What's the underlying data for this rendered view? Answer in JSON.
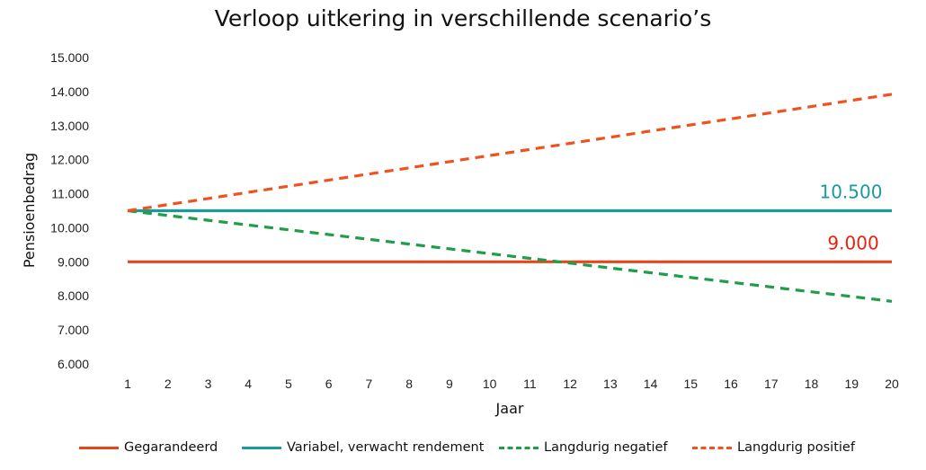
{
  "chart_data": {
    "type": "line",
    "title": "Verloop uitkering in verschillende scenario’s",
    "xlabel": "Jaar",
    "ylabel": "Pensioenbedrag",
    "x": [
      1,
      2,
      3,
      4,
      5,
      6,
      7,
      8,
      9,
      10,
      11,
      12,
      13,
      14,
      15,
      16,
      17,
      18,
      19,
      20
    ],
    "ylim": [
      6000,
      15000
    ],
    "yticks": [
      "6.000",
      "7.000",
      "8.000",
      "9.000",
      "10.000",
      "11.000",
      "12.000",
      "13.000",
      "14.000",
      "15.000"
    ],
    "ytick_values": [
      6000,
      7000,
      8000,
      9000,
      10000,
      11000,
      12000,
      13000,
      14000,
      15000
    ],
    "grid": false,
    "legend_position": "bottom",
    "series": [
      {
        "name": "Gegarandeerd",
        "color": "#e8461a",
        "style": "solid",
        "values": [
          9000,
          9000,
          9000,
          9000,
          9000,
          9000,
          9000,
          9000,
          9000,
          9000,
          9000,
          9000,
          9000,
          9000,
          9000,
          9000,
          9000,
          9000,
          9000,
          9000
        ]
      },
      {
        "name": "Variabel, verwacht rendement",
        "color": "#1a9a9a",
        "style": "solid",
        "values": [
          10500,
          10500,
          10500,
          10500,
          10500,
          10500,
          10500,
          10500,
          10500,
          10500,
          10500,
          10500,
          10500,
          10500,
          10500,
          10500,
          10500,
          10500,
          10500,
          10500
        ]
      },
      {
        "name": "Langdurig negatief",
        "color": "#1f9e4a",
        "style": "dashed",
        "values": [
          10500,
          10360,
          10220,
          10080,
          9940,
          9800,
          9660,
          9520,
          9380,
          9240,
          9100,
          8960,
          8820,
          8680,
          8540,
          8400,
          8260,
          8120,
          7980,
          7840
        ]
      },
      {
        "name": "Langdurig positief",
        "color": "#f0521e",
        "style": "dashed",
        "values": [
          10500,
          10680,
          10860,
          11040,
          11220,
          11400,
          11580,
          11760,
          11940,
          12120,
          12300,
          12480,
          12660,
          12840,
          13020,
          13200,
          13380,
          13560,
          13740,
          13920
        ]
      }
    ],
    "annotations": [
      {
        "text": "10.500",
        "x": 18.2,
        "y": 10500,
        "color": "#1a9a9a"
      },
      {
        "text": "9.000",
        "x": 18.4,
        "y": 9000,
        "color": "#e8210f"
      }
    ]
  }
}
